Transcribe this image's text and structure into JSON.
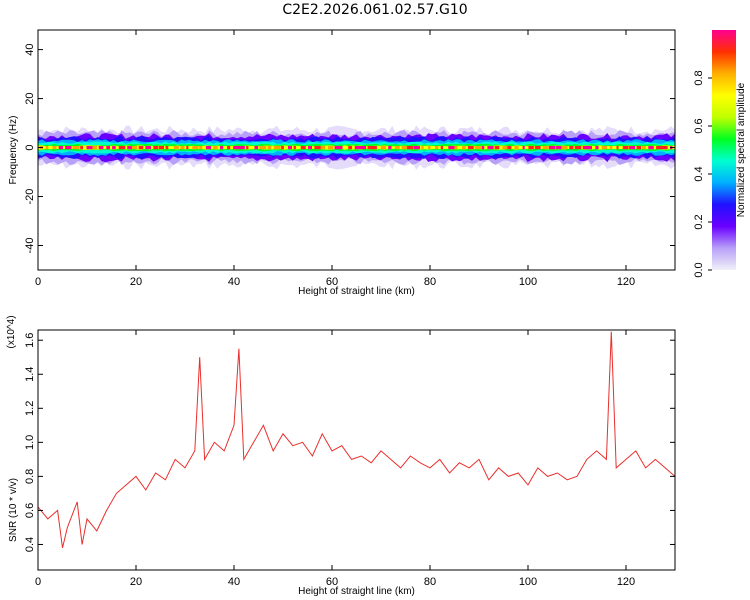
{
  "title": "C2E2.2026.061.02.57.G10",
  "chart_data": [
    {
      "type": "heatmap",
      "xlabel": "Height of straight line (km)",
      "ylabel": "Frequency (Hz)",
      "xlim": [
        0,
        130
      ],
      "ylim": [
        -50,
        48
      ],
      "xticks": [
        0,
        20,
        40,
        60,
        80,
        100,
        120
      ],
      "yticks": [
        40,
        20,
        0,
        -20,
        -40
      ],
      "grid": false,
      "band_center_hz": 0,
      "band_halfwidth_hz": 5,
      "colorbar": {
        "label": "Normalized spectral amplitude",
        "range": [
          0.0,
          1.0
        ],
        "ticks": [
          0.0,
          0.2,
          0.4,
          0.6,
          0.8
        ],
        "colors": [
          "#f0f0f8",
          "#b8a0f8",
          "#6a00ff",
          "#2010ff",
          "#00b0ff",
          "#00ffd0",
          "#00ff20",
          "#c0ff00",
          "#ffff00",
          "#ffb000",
          "#ff3000",
          "#ff0090"
        ]
      }
    },
    {
      "type": "line",
      "xlabel": "Height of straight line (km)",
      "ylabel": "SNR (10 * v/v)",
      "y_multiplier": "(x10^4)",
      "xlim": [
        0,
        130
      ],
      "ylim": [
        0.25,
        1.66
      ],
      "xticks": [
        0,
        20,
        40,
        60,
        80,
        100,
        120
      ],
      "yticks": [
        0.4,
        0.6,
        0.8,
        1.0,
        1.2,
        1.4,
        1.6
      ],
      "ytick_labels": [
        "0.4",
        "0.6",
        "0.8",
        "1.0",
        "1.2",
        "1.4",
        "1.6"
      ],
      "color": "#e8302c",
      "series": [
        {
          "x": [
            0,
            2,
            4,
            5,
            6,
            8,
            9,
            10,
            12,
            14,
            16,
            18,
            20,
            22,
            24,
            26,
            28,
            30,
            32,
            33,
            34,
            36,
            38,
            40,
            41,
            42,
            44,
            46,
            48,
            50,
            52,
            54,
            56,
            58,
            60,
            62,
            64,
            66,
            68,
            70,
            72,
            74,
            76,
            78,
            80,
            82,
            84,
            86,
            88,
            90,
            92,
            94,
            96,
            98,
            100,
            102,
            104,
            106,
            108,
            110,
            112,
            114,
            116,
            117,
            118,
            120,
            122,
            124,
            126,
            128,
            130
          ],
          "y": [
            0.62,
            0.55,
            0.6,
            0.38,
            0.5,
            0.65,
            0.4,
            0.55,
            0.48,
            0.6,
            0.7,
            0.75,
            0.8,
            0.72,
            0.82,
            0.78,
            0.9,
            0.85,
            0.95,
            1.5,
            0.9,
            1.0,
            0.95,
            1.1,
            1.55,
            0.9,
            1.0,
            1.1,
            0.95,
            1.05,
            0.98,
            1.0,
            0.92,
            1.05,
            0.95,
            0.98,
            0.9,
            0.92,
            0.88,
            0.95,
            0.9,
            0.85,
            0.92,
            0.88,
            0.85,
            0.9,
            0.82,
            0.88,
            0.85,
            0.9,
            0.78,
            0.85,
            0.8,
            0.82,
            0.75,
            0.85,
            0.8,
            0.82,
            0.78,
            0.8,
            0.9,
            0.95,
            0.9,
            1.65,
            0.85,
            0.9,
            0.95,
            0.85,
            0.9,
            0.85,
            0.8
          ]
        }
      ]
    }
  ]
}
